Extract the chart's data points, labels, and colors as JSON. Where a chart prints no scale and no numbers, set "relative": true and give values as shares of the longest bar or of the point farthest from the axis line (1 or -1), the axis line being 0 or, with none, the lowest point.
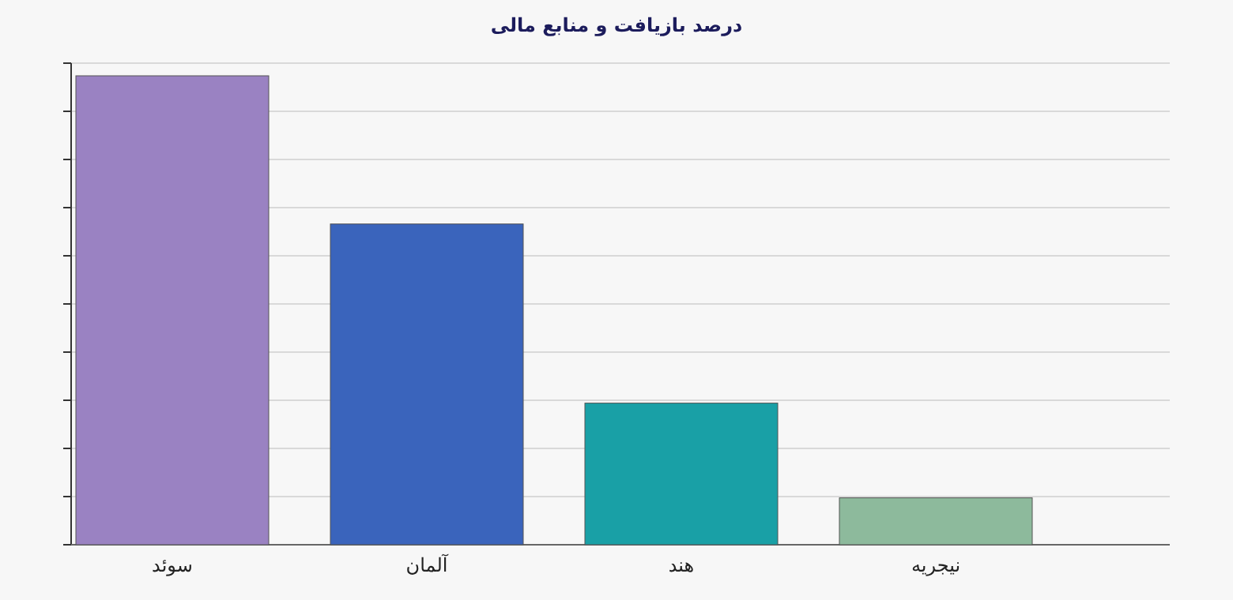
{
  "chart_data": {
    "type": "bar",
    "title": "درصد بازیافت و منابع مالی",
    "relative": true,
    "grid": "y",
    "categories": [
      "سوئد",
      "آلمان",
      "هند",
      "نیجریه"
    ],
    "values": [
      1,
      0.684,
      0.302,
      0.1
    ],
    "colors": [
      "#9a82c2",
      "#3a64bc",
      "#19a0a6",
      "#8dba9c"
    ]
  }
}
